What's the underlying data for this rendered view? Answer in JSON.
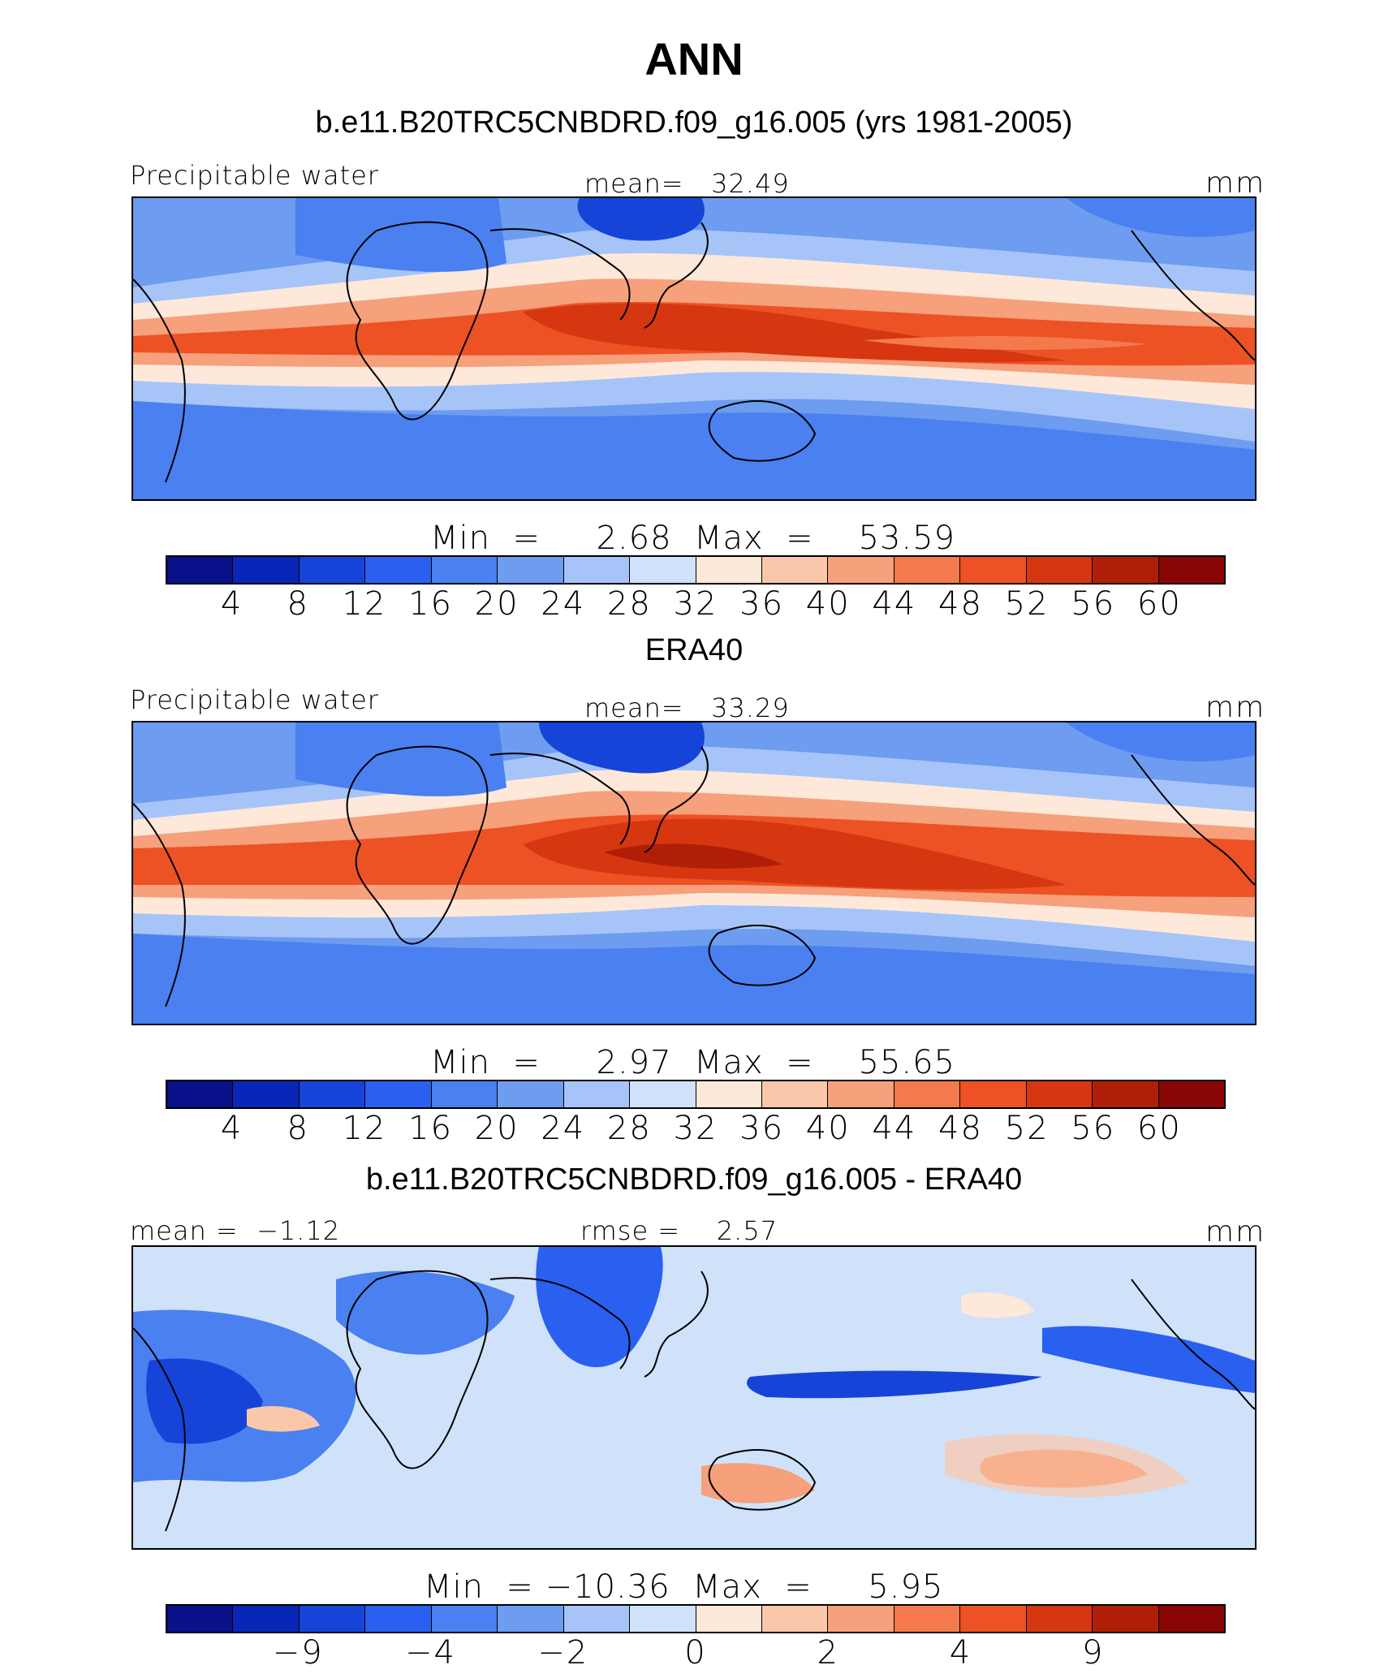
{
  "title": "ANN",
  "colors": {
    "scale": [
      "#08108a",
      "#0826b8",
      "#1644d8",
      "#2a60f0",
      "#4a80f0",
      "#6d9cf0",
      "#a6c4f8",
      "#d0e2fa",
      "#fde8da",
      "#fbc7aa",
      "#f6a07c",
      "#f47a4e",
      "#ec5224",
      "#d63610",
      "#b01e08",
      "#8a0606"
    ]
  },
  "panels": [
    {
      "title": "b.e11.B20TRC5CNBDRD.f09_g16.005 (yrs 1981-2005)",
      "left_label": "Precipitable water",
      "center_label": "mean=   32.49",
      "units": "mm",
      "minmax": "Min  =     2.68  Max  =    53.59",
      "ticks": [
        "4",
        "8",
        "12",
        "16",
        "20",
        "24",
        "28",
        "32",
        "36",
        "40",
        "44",
        "48",
        "52",
        "56",
        "60"
      ]
    },
    {
      "title": "ERA40",
      "left_label": "Precipitable water",
      "center_label": "mean=   33.29",
      "units": "mm",
      "minmax": "Min  =     2.97  Max  =    55.65",
      "ticks": [
        "4",
        "8",
        "12",
        "16",
        "20",
        "24",
        "28",
        "32",
        "36",
        "40",
        "44",
        "48",
        "52",
        "56",
        "60"
      ]
    },
    {
      "title": "b.e11.B20TRC5CNBDRD.f09_g16.005 - ERA40",
      "left_label": "mean =  −1.12",
      "center_label": "rmse =    2.57",
      "units": "mm",
      "minmax": "Min  = −10.36  Max  =     5.95",
      "ticks": [
        "−9",
        "−4",
        "−2",
        "0",
        "2",
        "4",
        "9"
      ]
    }
  ]
}
